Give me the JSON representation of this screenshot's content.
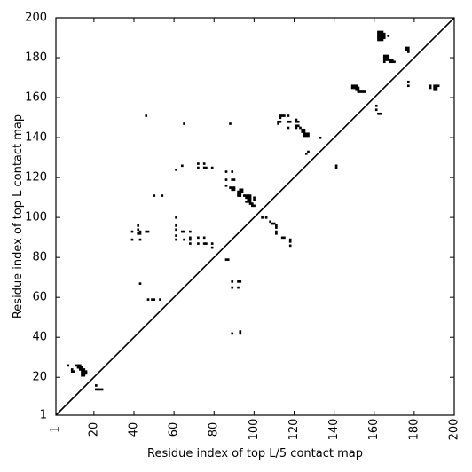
{
  "chart_data": {
    "type": "scatter",
    "title": "",
    "xlabel": "Residue index of top L/5 contact map",
    "ylabel": "Residue index of top L contact map",
    "xlim": [
      1,
      200
    ],
    "ylim": [
      1,
      200
    ],
    "x_ticks": [
      1,
      20,
      40,
      60,
      80,
      100,
      120,
      140,
      160,
      180,
      200
    ],
    "y_ticks": [
      1,
      20,
      40,
      60,
      80,
      100,
      120,
      140,
      160,
      180,
      200
    ],
    "x_tick_labels": [
      "1",
      "20",
      "40",
      "60",
      "80",
      "100",
      "120",
      "140",
      "160",
      "180",
      "200"
    ],
    "y_tick_labels": [
      "1",
      "20",
      "40",
      "60",
      "80",
      "100",
      "120",
      "140",
      "160",
      "180",
      "200"
    ],
    "grid": false,
    "diagonal": true,
    "marker_color": "#000000",
    "series": [
      {
        "name": "",
        "points": [
          [
            162,
            193
          ],
          [
            163,
            193
          ],
          [
            164,
            193
          ],
          [
            162,
            192
          ],
          [
            163,
            192
          ],
          [
            164,
            192
          ],
          [
            165,
            192
          ],
          [
            162,
            191
          ],
          [
            163,
            191
          ],
          [
            164,
            191
          ],
          [
            165,
            191
          ],
          [
            162,
            190
          ],
          [
            163,
            190
          ],
          [
            164,
            190
          ],
          [
            165,
            190
          ],
          [
            162,
            189
          ],
          [
            163,
            189
          ],
          [
            164,
            189
          ],
          [
            167,
            191
          ],
          [
            165,
            181
          ],
          [
            166,
            181
          ],
          [
            167,
            181
          ],
          [
            165,
            180
          ],
          [
            166,
            180
          ],
          [
            167,
            180
          ],
          [
            165,
            179
          ],
          [
            166,
            179
          ],
          [
            167,
            179
          ],
          [
            168,
            179
          ],
          [
            169,
            179
          ],
          [
            165,
            178
          ],
          [
            168,
            178
          ],
          [
            169,
            178
          ],
          [
            170,
            178
          ],
          [
            176,
            185
          ],
          [
            177,
            185
          ],
          [
            176,
            184
          ],
          [
            177,
            184
          ],
          [
            177,
            183
          ],
          [
            177,
            168
          ],
          [
            177,
            166
          ],
          [
            149,
            166
          ],
          [
            150,
            166
          ],
          [
            151,
            166
          ],
          [
            149,
            165
          ],
          [
            150,
            165
          ],
          [
            151,
            165
          ],
          [
            152,
            165
          ],
          [
            151,
            164
          ],
          [
            152,
            164
          ],
          [
            152,
            163
          ],
          [
            153,
            163
          ],
          [
            154,
            163
          ],
          [
            155,
            163
          ],
          [
            161,
            156
          ],
          [
            161,
            154
          ],
          [
            162,
            152
          ],
          [
            163,
            152
          ],
          [
            188,
            166
          ],
          [
            188,
            165
          ],
          [
            190,
            166
          ],
          [
            191,
            166
          ],
          [
            192,
            166
          ],
          [
            190,
            165
          ],
          [
            191,
            165
          ],
          [
            190,
            164
          ],
          [
            191,
            164
          ],
          [
            113,
            151
          ],
          [
            114,
            151
          ],
          [
            115,
            151
          ],
          [
            113,
            150
          ],
          [
            112,
            148
          ],
          [
            113,
            148
          ],
          [
            112,
            147
          ],
          [
            117,
            151
          ],
          [
            117,
            148
          ],
          [
            118,
            148
          ],
          [
            117,
            145
          ],
          [
            121,
            149
          ],
          [
            121,
            148
          ],
          [
            122,
            148
          ],
          [
            121,
            146
          ],
          [
            122,
            146
          ],
          [
            121,
            145
          ],
          [
            123,
            145
          ],
          [
            124,
            144
          ],
          [
            125,
            144
          ],
          [
            124,
            143
          ],
          [
            125,
            143
          ],
          [
            125,
            142
          ],
          [
            126,
            142
          ],
          [
            127,
            142
          ],
          [
            125,
            141
          ],
          [
            126,
            141
          ],
          [
            127,
            141
          ],
          [
            127,
            133
          ],
          [
            126,
            132
          ],
          [
            133,
            140
          ],
          [
            141,
            126
          ],
          [
            141,
            125
          ],
          [
            46,
            151
          ],
          [
            65,
            147
          ],
          [
            88,
            147
          ],
          [
            61,
            124
          ],
          [
            64,
            126
          ],
          [
            72,
            127
          ],
          [
            72,
            125
          ],
          [
            75,
            127
          ],
          [
            75,
            125
          ],
          [
            76,
            125
          ],
          [
            79,
            125
          ],
          [
            86,
            123
          ],
          [
            89,
            123
          ],
          [
            86,
            119
          ],
          [
            89,
            119
          ],
          [
            90,
            119
          ],
          [
            86,
            116
          ],
          [
            88,
            115
          ],
          [
            89,
            115
          ],
          [
            90,
            115
          ],
          [
            89,
            114
          ],
          [
            90,
            114
          ],
          [
            93,
            114
          ],
          [
            94,
            114
          ],
          [
            92,
            113
          ],
          [
            93,
            113
          ],
          [
            94,
            113
          ],
          [
            92,
            112
          ],
          [
            93,
            112
          ],
          [
            92,
            111
          ],
          [
            93,
            111
          ],
          [
            95,
            111
          ],
          [
            96,
            111
          ],
          [
            97,
            111
          ],
          [
            98,
            111
          ],
          [
            96,
            110
          ],
          [
            97,
            110
          ],
          [
            98,
            110
          ],
          [
            97,
            109
          ],
          [
            98,
            109
          ],
          [
            96,
            108
          ],
          [
            97,
            108
          ],
          [
            98,
            108
          ],
          [
            100,
            110
          ],
          [
            100,
            109
          ],
          [
            98,
            107
          ],
          [
            99,
            107
          ],
          [
            99,
            106
          ],
          [
            100,
            106
          ],
          [
            50,
            111
          ],
          [
            54,
            111
          ],
          [
            104,
            100
          ],
          [
            106,
            100
          ],
          [
            108,
            98
          ],
          [
            109,
            97
          ],
          [
            110,
            97
          ],
          [
            111,
            96
          ],
          [
            111,
            95
          ],
          [
            111,
            93
          ],
          [
            111,
            92
          ],
          [
            114,
            90
          ],
          [
            115,
            90
          ],
          [
            118,
            89
          ],
          [
            118,
            88
          ],
          [
            118,
            86
          ],
          [
            39,
            93
          ],
          [
            42,
            96
          ],
          [
            42,
            94
          ],
          [
            43,
            93
          ],
          [
            42,
            92
          ],
          [
            43,
            92
          ],
          [
            46,
            93
          ],
          [
            47,
            93
          ],
          [
            39,
            89
          ],
          [
            43,
            89
          ],
          [
            61,
            100
          ],
          [
            61,
            96
          ],
          [
            61,
            94
          ],
          [
            64,
            93
          ],
          [
            65,
            93
          ],
          [
            68,
            93
          ],
          [
            61,
            91
          ],
          [
            61,
            89
          ],
          [
            65,
            89
          ],
          [
            68,
            90
          ],
          [
            68,
            89
          ],
          [
            72,
            90
          ],
          [
            75,
            90
          ],
          [
            68,
            87
          ],
          [
            72,
            87
          ],
          [
            75,
            87
          ],
          [
            76,
            87
          ],
          [
            79,
            87
          ],
          [
            79,
            85
          ],
          [
            86,
            79
          ],
          [
            87,
            79
          ],
          [
            89,
            68
          ],
          [
            89,
            65
          ],
          [
            92,
            68
          ],
          [
            93,
            68
          ],
          [
            92,
            65
          ],
          [
            43,
            67
          ],
          [
            47,
            59
          ],
          [
            49,
            59
          ],
          [
            50,
            59
          ],
          [
            53,
            59
          ],
          [
            89,
            42
          ],
          [
            93,
            43
          ],
          [
            93,
            42
          ],
          [
            7,
            26
          ],
          [
            11,
            26
          ],
          [
            12,
            26
          ],
          [
            13,
            26
          ],
          [
            12,
            25
          ],
          [
            13,
            25
          ],
          [
            14,
            25
          ],
          [
            13,
            24
          ],
          [
            14,
            24
          ],
          [
            15,
            24
          ],
          [
            14,
            23
          ],
          [
            15,
            23
          ],
          [
            16,
            23
          ],
          [
            14,
            22
          ],
          [
            15,
            22
          ],
          [
            16,
            22
          ],
          [
            14,
            21
          ],
          [
            15,
            21
          ],
          [
            9,
            24
          ],
          [
            9,
            23
          ],
          [
            10,
            23
          ],
          [
            21,
            16
          ],
          [
            21,
            14
          ],
          [
            22,
            14
          ],
          [
            23,
            14
          ],
          [
            24,
            14
          ]
        ]
      }
    ]
  }
}
